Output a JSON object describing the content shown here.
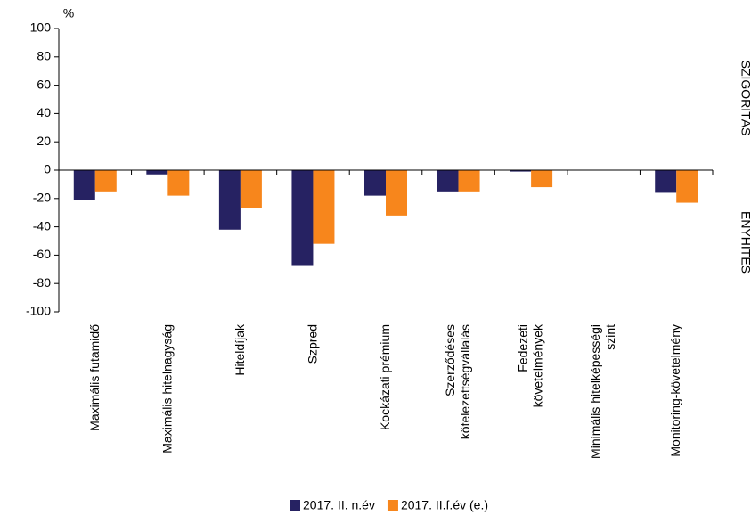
{
  "chart_data": {
    "type": "bar",
    "unit": "%",
    "categories": [
      "Maximális futamidő",
      "Maximális hitelnagyság",
      "Hiteldíjak",
      "Szpred",
      "Kockázati prémium",
      "Szerződéses\nkötelezettségvállalás",
      "Fedezeti\nkövetelmények",
      "Minimális hitelképességi\nszint",
      "Monitoring-követelmény"
    ],
    "series": [
      {
        "name": "2017. II. n.év",
        "color": "#262262",
        "values": [
          -21,
          -3,
          -42,
          -67,
          -18,
          -15,
          -1,
          0,
          -16
        ]
      },
      {
        "name": "2017. II.f.év (e.)",
        "color": "#f7861c",
        "values": [
          -15,
          -18,
          -27,
          -52,
          -32,
          -15,
          -12,
          0,
          -23
        ]
      }
    ],
    "ylim": [
      -100,
      100
    ],
    "yticks": [
      -100,
      -80,
      -60,
      -40,
      -20,
      0,
      20,
      40,
      60,
      80,
      100
    ],
    "right_labels": [
      "SZIGORÍTÁS",
      "ENYHÍTÉS"
    ],
    "grid": false
  }
}
